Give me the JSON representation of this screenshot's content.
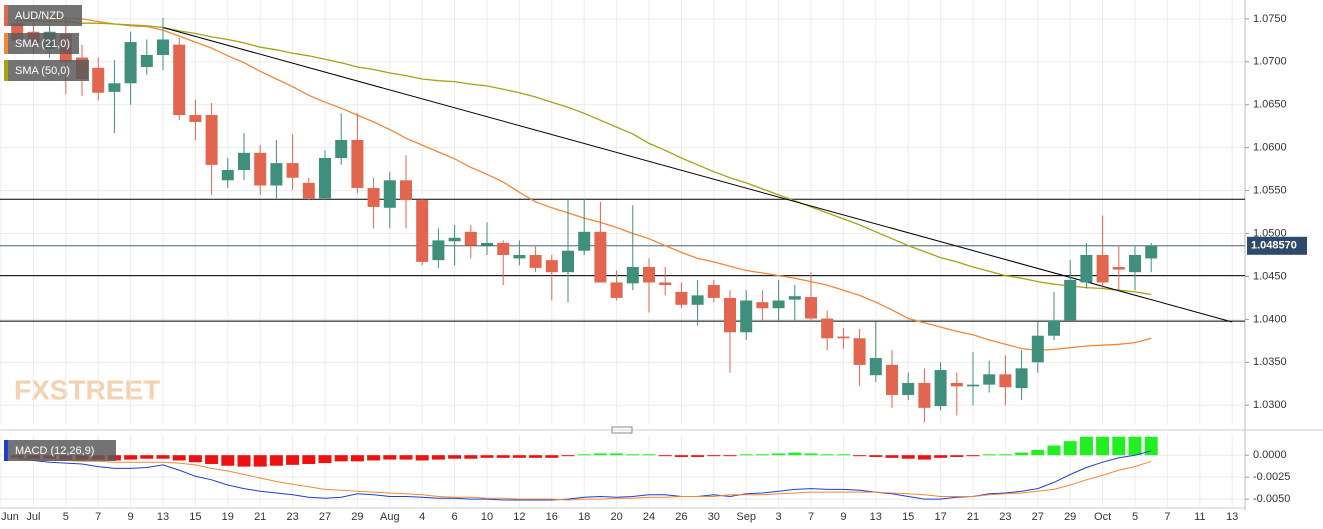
{
  "chart_data": [
    {
      "type": "candlestick",
      "name": "AUD/NZD",
      "watermark": "FXSTREET",
      "categories": [
        "Jun",
        null,
        "Jul",
        null,
        "5",
        null,
        "7",
        null,
        "9",
        null,
        "13",
        null,
        "15",
        null,
        "19",
        null,
        "21",
        null,
        "23",
        null,
        "27",
        null,
        "29",
        null,
        "Aug",
        null,
        "4",
        null,
        "6",
        null,
        "10",
        null,
        "12",
        null,
        "16",
        null,
        "18",
        null,
        "20",
        null,
        "24",
        null,
        "26",
        null,
        "30",
        null,
        "Sep",
        null,
        "3",
        null,
        "7",
        null,
        "9",
        null,
        "13",
        null,
        "15",
        null,
        "17",
        null,
        "21",
        null,
        "23",
        null,
        "27",
        null,
        "29",
        null,
        "Oct",
        null,
        "5",
        null,
        "7",
        null,
        "11",
        null,
        "13"
      ],
      "open": [
        null,
        1.0745,
        1.0735,
        1.0715,
        1.0732,
        1.0705,
        1.0693,
        1.0665,
        1.0675,
        1.0694,
        1.0708,
        1.072,
        1.0638,
        1.0638,
        1.0562,
        1.0574,
        1.0594,
        1.0556,
        1.0582,
        1.0559,
        1.0541,
        1.0588,
        1.0609,
        1.0553,
        1.053,
        1.0562,
        1.0539,
        1.0469,
        1.0491,
        1.0502,
        1.0486,
        1.0489,
        1.0471,
        1.0475,
        1.0469,
        1.0455,
        1.048,
        1.0502,
        1.0443,
        1.0442,
        1.0461,
        1.0443,
        1.0432,
        1.0417,
        1.044,
        1.0425,
        1.0385,
        1.042,
        1.0413,
        1.0423,
        1.0426,
        1.0401,
        1.038,
        1.0378,
        1.0335,
        1.0347,
        1.0312,
        1.0326,
        1.0299,
        1.0326,
        1.0322,
        1.0324,
        1.0336,
        1.032,
        1.035,
        1.0381,
        1.0399,
        1.0443,
        1.0475,
        1.0461,
        1.0455,
        1.0471,
        null,
        null,
        null,
        null,
        null
      ],
      "high": [
        null,
        1.076,
        1.0755,
        1.0745,
        1.075,
        1.072,
        1.0705,
        1.0702,
        1.0735,
        1.0726,
        1.0751,
        1.0728,
        1.0656,
        1.0652,
        1.0588,
        1.0617,
        1.0603,
        1.0609,
        1.0615,
        1.0565,
        1.0597,
        1.064,
        1.064,
        1.0565,
        1.0572,
        1.0591,
        1.0541,
        1.0506,
        1.051,
        1.051,
        1.0513,
        1.0492,
        1.0492,
        1.0486,
        1.0475,
        1.0541,
        1.0541,
        1.0537,
        1.0457,
        1.0533,
        1.0471,
        1.0461,
        1.0443,
        1.0446,
        1.0446,
        1.0434,
        1.0434,
        1.0434,
        1.0446,
        1.044,
        1.0455,
        1.041,
        1.039,
        1.0389,
        1.0397,
        1.0364,
        1.0338,
        1.0343,
        1.035,
        1.0338,
        1.0362,
        1.0352,
        1.0358,
        1.0364,
        1.0397,
        1.0432,
        1.0469,
        1.0489,
        1.0521,
        1.0486,
        1.0486,
        1.0489,
        null,
        null,
        null,
        null,
        null
      ],
      "low": [
        null,
        1.0715,
        1.071,
        1.0705,
        1.0662,
        1.066,
        1.0655,
        1.0617,
        1.065,
        1.0685,
        1.069,
        1.0632,
        1.0609,
        1.0545,
        1.0553,
        1.0562,
        1.0545,
        1.0541,
        1.0551,
        1.0539,
        1.0539,
        1.058,
        1.0547,
        1.0506,
        1.0506,
        1.0506,
        1.0463,
        1.046,
        1.0463,
        1.0471,
        1.0475,
        1.044,
        1.0463,
        1.0455,
        1.0422,
        1.042,
        1.0475,
        1.0443,
        1.0422,
        1.0434,
        1.0408,
        1.0428,
        1.0413,
        1.0393,
        1.042,
        1.0338,
        1.0376,
        1.0399,
        1.0399,
        1.0399,
        1.0397,
        1.0364,
        1.0366,
        1.0323,
        1.0327,
        1.0297,
        1.0306,
        1.028,
        1.0294,
        1.0288,
        1.03,
        1.0315,
        1.03,
        1.0306,
        1.0338,
        1.0376,
        1.0397,
        1.0436,
        1.0436,
        1.0434,
        1.0434,
        1.0455,
        null,
        null,
        null,
        null,
        null
      ],
      "close": [
        null,
        1.0725,
        1.072,
        1.0735,
        1.07,
        1.068,
        1.0664,
        1.0675,
        1.0723,
        1.0708,
        1.0726,
        1.0638,
        1.063,
        1.058,
        1.0574,
        1.0594,
        1.0556,
        1.0582,
        1.0565,
        1.0541,
        1.0588,
        1.0609,
        1.0553,
        1.0531,
        1.0562,
        1.0539,
        1.0467,
        1.0492,
        1.0495,
        1.0486,
        1.0489,
        1.0475,
        1.0475,
        1.046,
        1.0455,
        1.048,
        1.0502,
        1.0443,
        1.0425,
        1.0461,
        1.0443,
        1.044,
        1.0417,
        1.0428,
        1.0425,
        1.0385,
        1.0422,
        1.0413,
        1.0422,
        1.0427,
        1.0401,
        1.0378,
        1.0378,
        1.0347,
        1.0355,
        1.0312,
        1.0326,
        1.0297,
        1.0341,
        1.0322,
        1.0324,
        1.0336,
        1.0321,
        1.0343,
        1.0381,
        1.0399,
        1.0446,
        1.0475,
        1.0443,
        1.0458,
        1.0475,
        1.04857,
        null,
        null,
        null,
        null,
        null
      ],
      "up_color": "#3f8f7c",
      "down_color": "#e2654f",
      "overlays": [
        {
          "name": "SMA (21,0)",
          "color": "#f0883a",
          "values": [
            null,
            1.0758,
            1.0756,
            1.0753,
            1.0751,
            1.075,
            1.0747,
            1.0744,
            1.0742,
            1.0741,
            1.0737,
            1.073,
            1.0723,
            1.0716,
            1.0707,
            1.0699,
            1.0689,
            1.068,
            1.0671,
            1.0661,
            1.0653,
            1.0646,
            1.0638,
            1.063,
            1.0621,
            1.0611,
            1.0603,
            1.0595,
            1.0587,
            1.0577,
            1.0569,
            1.056,
            1.0548,
            1.0537,
            1.053,
            1.0524,
            1.0518,
            1.0513,
            1.0507,
            1.05,
            1.0494,
            1.0486,
            1.0478,
            1.0471,
            1.0467,
            1.0462,
            1.0457,
            1.0454,
            1.0451,
            1.0448,
            1.0444,
            1.044,
            1.0434,
            1.0428,
            1.042,
            1.0411,
            1.0401,
            1.0396,
            1.0391,
            1.0386,
            1.0382,
            1.0376,
            1.0371,
            1.0366,
            1.0364,
            1.0365,
            1.0367,
            1.0369,
            1.037,
            1.0371,
            1.0373,
            1.0378,
            null,
            null,
            null,
            null,
            null
          ]
        },
        {
          "name": "SMA (50,0)",
          "color": "#a5a316",
          "values": [
            null,
            1.0748,
            1.0748,
            1.0747,
            1.0747,
            1.0745,
            1.0745,
            1.0744,
            1.0743,
            1.0742,
            1.074,
            1.0736,
            1.0733,
            1.0729,
            1.0726,
            1.0722,
            1.0717,
            1.0714,
            1.071,
            1.0707,
            1.0703,
            1.0699,
            1.0694,
            1.0691,
            1.0687,
            1.0684,
            1.068,
            1.0678,
            1.0677,
            1.0674,
            1.0672,
            1.0668,
            1.0664,
            1.0659,
            1.0653,
            1.0647,
            1.064,
            1.0632,
            1.0624,
            1.0616,
            1.0605,
            1.0597,
            1.0588,
            1.058,
            1.0572,
            1.0565,
            1.0559,
            1.0552,
            1.0545,
            1.0538,
            1.0531,
            1.0524,
            1.0517,
            1.051,
            1.0502,
            1.0494,
            1.0486,
            1.0479,
            1.0472,
            1.0467,
            1.0461,
            1.0456,
            1.0451,
            1.0448,
            1.0444,
            1.0441,
            1.0439,
            1.0437,
            1.0436,
            1.0434,
            1.0432,
            1.0429,
            null,
            null,
            null,
            null,
            null
          ]
        }
      ],
      "trendline": {
        "color": "#000000",
        "x": [
          10,
          76
        ],
        "values": [
          1.074,
          1.0397
        ]
      },
      "levels": [
        1.054,
        1.0451,
        1.0398
      ],
      "last_price": {
        "value": 1.04857,
        "label": "1.048570"
      },
      "ylim": [
        1.0277,
        1.0772
      ],
      "yticks": [
        {
          "value": 1.03,
          "label": "1.0300"
        },
        {
          "value": 1.035,
          "label": "1.0350"
        },
        {
          "value": 1.04,
          "label": "1.0400"
        },
        {
          "value": 1.045,
          "label": "1.0450"
        },
        {
          "value": 1.05,
          "label": "1.0500"
        },
        {
          "value": 1.055,
          "label": "1.0550"
        },
        {
          "value": 1.06,
          "label": "1.0600"
        },
        {
          "value": 1.065,
          "label": "1.0650"
        },
        {
          "value": 1.07,
          "label": "1.0700"
        },
        {
          "value": 1.075,
          "label": "1.0750"
        }
      ]
    },
    {
      "type": "macd",
      "name": "MACD (12,26,9)",
      "histogram": {
        "up_color": "#22ee22",
        "down_color": "#ee1111",
        "values": [
          null,
          -0.0003,
          -0.0004,
          -0.0004,
          -0.0005,
          -0.0005,
          -0.0005,
          -0.0006,
          -0.0005,
          -0.0004,
          -0.0004,
          -0.0006,
          -0.0008,
          -0.001,
          -0.0012,
          -0.0013,
          -0.0013,
          -0.0012,
          -0.0011,
          -0.001,
          -0.0009,
          -0.0007,
          -0.0007,
          -0.0006,
          -0.0005,
          -0.0005,
          -0.0006,
          -0.0005,
          -0.0004,
          -0.0004,
          -0.0003,
          -0.0003,
          -0.0003,
          -0.0003,
          -0.0003,
          -0.0001,
          0.0001,
          0.0002,
          0.0002,
          0.0001,
          0.0001,
          -0.0001,
          -0.0002,
          -0.0002,
          -0.0001,
          -0.0001,
          0.0001,
          0.0001,
          0.0002,
          0.0003,
          0.0002,
          0.0001,
          0.0001,
          -0.0001,
          -0.0002,
          -0.0003,
          -0.0004,
          -0.0005,
          -0.0003,
          -0.0002,
          -0.0001,
          0.0001,
          0.0001,
          0.0003,
          0.0006,
          0.0011,
          0.0016,
          0.0021,
          0.0021,
          0.0021,
          0.0021,
          0.0021,
          null,
          null,
          null,
          null,
          null
        ]
      },
      "series": [
        {
          "color": "#1f3fcf",
          "values": [
            null,
            -0.0003,
            -0.0006,
            -0.0008,
            -0.0009,
            -0.001,
            -0.0013,
            -0.0015,
            -0.0015,
            -0.0014,
            -0.0011,
            -0.0017,
            -0.0024,
            -0.0028,
            -0.0034,
            -0.0038,
            -0.0041,
            -0.0043,
            -0.0045,
            -0.0048,
            -0.0049,
            -0.0048,
            -0.0044,
            -0.0045,
            -0.0047,
            -0.0047,
            -0.0048,
            -0.0049,
            -0.0049,
            -0.005,
            -0.005,
            -0.0051,
            -0.0051,
            -0.0051,
            -0.0051,
            -0.005,
            -0.0048,
            -0.0047,
            -0.0048,
            -0.0047,
            -0.0045,
            -0.0045,
            -0.0047,
            -0.0047,
            -0.0045,
            -0.0047,
            -0.0044,
            -0.0043,
            -0.0041,
            -0.0039,
            -0.0038,
            -0.0039,
            -0.0039,
            -0.004,
            -0.0042,
            -0.0044,
            -0.0047,
            -0.005,
            -0.005,
            -0.0048,
            -0.0047,
            -0.0044,
            -0.0043,
            -0.0041,
            -0.0038,
            -0.0031,
            -0.0022,
            -0.0014,
            -0.0008,
            -0.0003,
            0.0,
            0.0005,
            null,
            null,
            null,
            null,
            null
          ]
        },
        {
          "color": "#f0883a",
          "values": [
            null,
            -0.0005,
            -0.0005,
            -0.0006,
            -0.0006,
            -0.0007,
            -0.0007,
            -0.0008,
            -0.0008,
            -0.0008,
            -0.0008,
            -0.0009,
            -0.0011,
            -0.0015,
            -0.0018,
            -0.0022,
            -0.0026,
            -0.003,
            -0.0033,
            -0.0036,
            -0.0039,
            -0.004,
            -0.0041,
            -0.0042,
            -0.0043,
            -0.0044,
            -0.0045,
            -0.0047,
            -0.0048,
            -0.0048,
            -0.0049,
            -0.0049,
            -0.005,
            -0.005,
            -0.005,
            -0.0051,
            -0.005,
            -0.005,
            -0.0049,
            -0.0049,
            -0.0048,
            -0.0048,
            -0.0047,
            -0.0047,
            -0.0047,
            -0.0045,
            -0.0045,
            -0.0045,
            -0.0044,
            -0.0043,
            -0.0042,
            -0.0042,
            -0.0042,
            -0.0042,
            -0.0042,
            -0.0043,
            -0.0044,
            -0.0045,
            -0.0047,
            -0.0047,
            -0.0047,
            -0.0045,
            -0.0044,
            -0.0043,
            -0.0041,
            -0.0039,
            -0.0034,
            -0.0028,
            -0.0023,
            -0.0017,
            -0.0013,
            -0.0007,
            null,
            null,
            null,
            null,
            null
          ]
        }
      ],
      "ylim": [
        -0.0059,
        0.0023
      ],
      "yticks": [
        {
          "value": 0,
          "label": "0.0000"
        },
        {
          "value": -0.0025,
          "label": "-0.0025"
        },
        {
          "value": -0.005,
          "label": "-0.0050"
        }
      ]
    }
  ]
}
